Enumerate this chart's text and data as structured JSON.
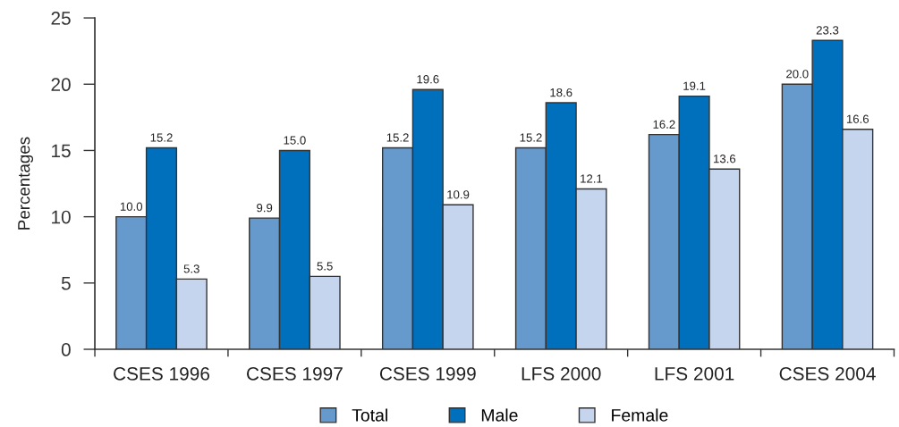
{
  "chart_data": {
    "type": "bar",
    "ylabel": "Percentages",
    "categories": [
      "CSES 1996",
      "CSES 1997",
      "CSES 1999",
      "LFS 2000",
      "LFS 2001",
      "CSES 2004"
    ],
    "series": [
      {
        "name": "Total",
        "color": "#6699cc",
        "values": [
          10.0,
          9.9,
          15.2,
          15.2,
          16.2,
          20.0
        ],
        "value_labels": [
          "10.0",
          "9.9",
          "15.2",
          "15.2",
          "16.2",
          "20.0"
        ]
      },
      {
        "name": "Male",
        "color": "#006fbc",
        "values": [
          15.2,
          15.0,
          19.6,
          18.6,
          19.1,
          23.3
        ],
        "value_labels": [
          "15.2",
          "15.0",
          "19.6",
          "18.6",
          "19.1",
          "23.3"
        ]
      },
      {
        "name": "Female",
        "color": "#c6d5ee",
        "values": [
          5.3,
          5.5,
          10.9,
          12.1,
          13.6,
          16.6
        ],
        "value_labels": [
          "5.3",
          "5.5",
          "10.9",
          "12.1",
          "13.6",
          "16.6"
        ]
      }
    ],
    "ylim": [
      0,
      25
    ],
    "yticks": [
      0,
      5,
      10,
      15,
      20,
      25
    ],
    "grid": false,
    "legend": "bottom"
  }
}
